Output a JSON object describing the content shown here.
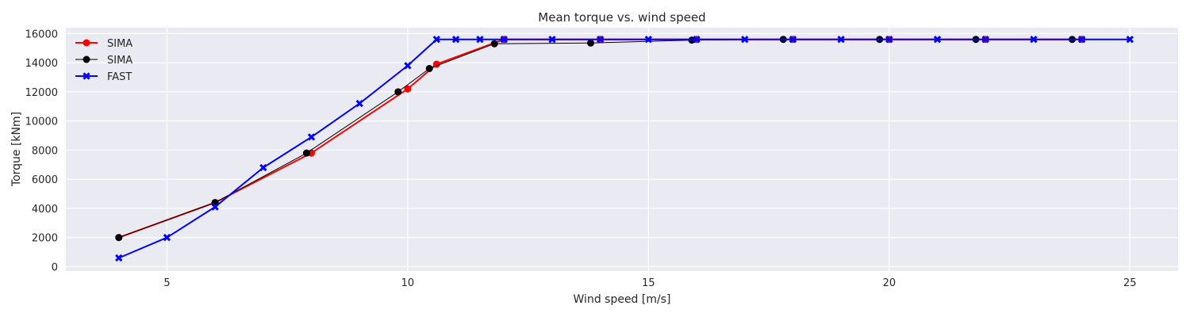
{
  "chart_data": {
    "type": "line",
    "title": "Mean torque vs. wind speed",
    "xlabel": "Wind speed [m/s]",
    "ylabel": "Torque [kNm]",
    "xlim": [
      2.9,
      26.0
    ],
    "ylim": [
      -300,
      16400
    ],
    "xticks": [
      5,
      10,
      15,
      20,
      25
    ],
    "yticks": [
      0,
      2000,
      4000,
      6000,
      8000,
      10000,
      12000,
      14000,
      16000
    ],
    "grid": true,
    "legend_position": "top-left",
    "colors": {
      "background": "#eaeaf2",
      "grid": "#ffffff"
    },
    "series": [
      {
        "name": "SIMA",
        "color": "#ff0000",
        "marker": "circle",
        "line_width": 2,
        "x": [
          4,
          6,
          8,
          10,
          10.6,
          12,
          14,
          16,
          18,
          20,
          22,
          24
        ],
        "y": [
          2000,
          4400,
          7800,
          12200,
          13900,
          15600,
          15600,
          15600,
          15600,
          15600,
          15600,
          15600
        ]
      },
      {
        "name": "SIMA",
        "color": "#000000",
        "marker": "circle",
        "line_width": 1,
        "x": [
          4,
          6,
          7.9,
          9.8,
          10.45,
          11.8,
          13.8,
          15.9,
          17.8,
          19.8,
          21.8,
          23.8
        ],
        "y": [
          2000,
          4400,
          7800,
          12000,
          13600,
          15300,
          15350,
          15550,
          15600,
          15600,
          15600,
          15600
        ]
      },
      {
        "name": "FAST",
        "color": "#0000ff",
        "marker": "x",
        "line_width": 2,
        "x": [
          4,
          5,
          6,
          7,
          8,
          9,
          10,
          10.6,
          11,
          11.5,
          12,
          13,
          14,
          15,
          16,
          17,
          18,
          19,
          20,
          21,
          22,
          23,
          24,
          25
        ],
        "y": [
          600,
          2000,
          4100,
          6800,
          8900,
          11200,
          13800,
          15600,
          15600,
          15600,
          15600,
          15600,
          15600,
          15600,
          15600,
          15600,
          15600,
          15600,
          15600,
          15600,
          15600,
          15600,
          15600,
          15600
        ]
      }
    ]
  }
}
